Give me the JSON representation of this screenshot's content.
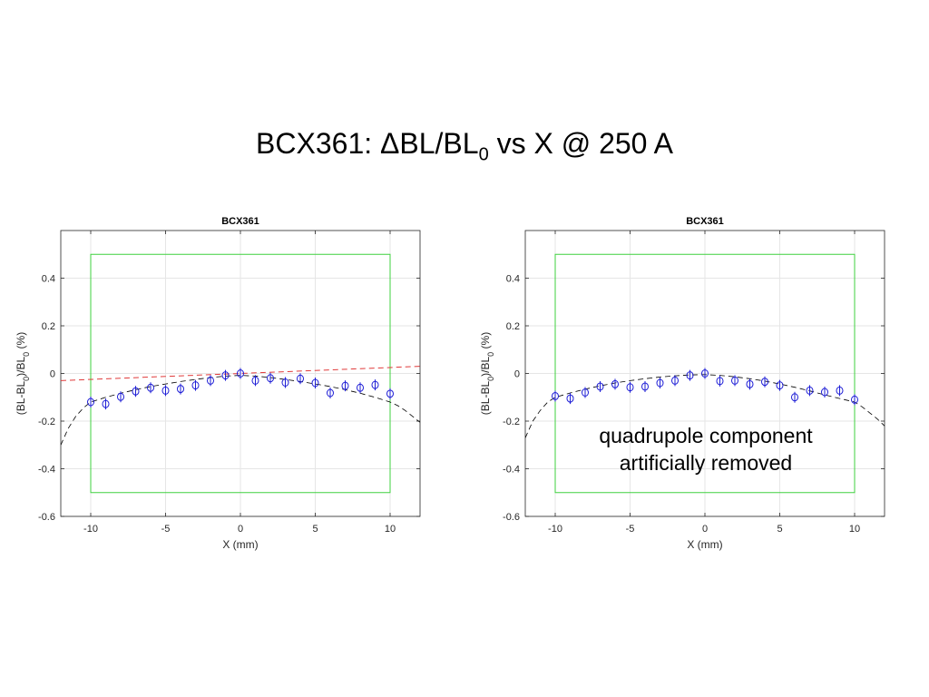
{
  "slide": {
    "title_prefix": "BCX361: ΔBL/BL",
    "title_sub": "0",
    "title_suffix": " vs X @ 250 A"
  },
  "chart_data": [
    {
      "type": "scatter",
      "title": "BCX361",
      "xlabel": "X (mm)",
      "ylabel_parts": [
        "(BL-BL",
        "0",
        ")/BL",
        "0",
        " (%)"
      ],
      "xlim": [
        -12,
        12
      ],
      "ylim": [
        -0.6,
        0.6
      ],
      "xticks": [
        "-10",
        "-5",
        "0",
        "5",
        "10"
      ],
      "yticks": [
        "-0.6",
        "-0.4",
        "-0.2",
        "0",
        "0.2",
        "0.4"
      ],
      "grid": true,
      "annotation": [],
      "markers": {
        "x": [
          -10,
          -9,
          -8,
          -7,
          -6,
          -5,
          -4,
          -3,
          -2,
          -1,
          0,
          1,
          2,
          3,
          4,
          5,
          6,
          7,
          8,
          9,
          10
        ],
        "y": [
          -0.12,
          -0.128,
          -0.098,
          -0.075,
          -0.06,
          -0.072,
          -0.065,
          -0.05,
          -0.03,
          -0.008,
          0.0,
          -0.03,
          -0.02,
          -0.038,
          -0.022,
          -0.04,
          -0.082,
          -0.052,
          -0.06,
          -0.048,
          -0.085
        ],
        "color": "#1f1fd6"
      },
      "fit_curve": {
        "x": [
          -12,
          -11.5,
          -11,
          -10.5,
          -10,
          -9,
          -8,
          -7,
          -6,
          -5,
          -4,
          -3,
          -2,
          -1,
          0,
          1,
          2,
          3,
          4,
          5,
          6,
          7,
          8,
          9,
          10,
          10.5,
          11,
          11.5,
          12
        ],
        "y": [
          -0.3,
          -0.23,
          -0.18,
          -0.145,
          -0.12,
          -0.1,
          -0.083,
          -0.068,
          -0.055,
          -0.044,
          -0.034,
          -0.025,
          -0.017,
          -0.011,
          -0.008,
          -0.011,
          -0.017,
          -0.025,
          -0.034,
          -0.044,
          -0.055,
          -0.068,
          -0.083,
          -0.1,
          -0.12,
          -0.135,
          -0.155,
          -0.18,
          -0.205
        ],
        "color": "#000000",
        "style": "dashed"
      },
      "linear_trend": {
        "x": [
          -12,
          12
        ],
        "y": [
          -0.03,
          0.03
        ],
        "color": "#e03a3a",
        "style": "dashed"
      },
      "tolerance_box": {
        "x": [
          -10,
          10
        ],
        "y": [
          -0.5,
          0.5
        ],
        "color": "#3fd03f"
      }
    },
    {
      "type": "scatter",
      "title": "BCX361",
      "xlabel": "X (mm)",
      "ylabel_parts": [
        "(BL-BL",
        "0",
        ")/BL",
        "0",
        " (%)"
      ],
      "xlim": [
        -12,
        12
      ],
      "ylim": [
        -0.6,
        0.6
      ],
      "xticks": [
        "-10",
        "-5",
        "0",
        "5",
        "10"
      ],
      "yticks": [
        "-0.6",
        "-0.4",
        "-0.2",
        "0",
        "0.2",
        "0.4"
      ],
      "grid": true,
      "annotation": [
        "quadrupole component",
        "artificially removed"
      ],
      "markers": {
        "x": [
          -10,
          -9,
          -8,
          -7,
          -6,
          -5,
          -4,
          -3,
          -2,
          -1,
          0,
          1,
          2,
          3,
          4,
          5,
          6,
          7,
          8,
          9,
          10
        ],
        "y": [
          -0.095,
          -0.105,
          -0.08,
          -0.055,
          -0.045,
          -0.058,
          -0.055,
          -0.04,
          -0.03,
          -0.008,
          0.0,
          -0.032,
          -0.03,
          -0.045,
          -0.035,
          -0.05,
          -0.1,
          -0.072,
          -0.078,
          -0.072,
          -0.11
        ],
        "color": "#1f1fd6"
      },
      "fit_curve": {
        "x": [
          -12,
          -11.5,
          -11,
          -10.5,
          -10,
          -9,
          -8,
          -7,
          -6,
          -5,
          -4,
          -3,
          -2,
          -1,
          0,
          1,
          2,
          3,
          4,
          5,
          6,
          7,
          8,
          9,
          10,
          10.5,
          11,
          11.5,
          12
        ],
        "y": [
          -0.27,
          -0.2,
          -0.155,
          -0.12,
          -0.1,
          -0.082,
          -0.066,
          -0.052,
          -0.04,
          -0.03,
          -0.022,
          -0.015,
          -0.01,
          -0.006,
          -0.005,
          -0.008,
          -0.014,
          -0.022,
          -0.032,
          -0.044,
          -0.058,
          -0.073,
          -0.09,
          -0.105,
          -0.12,
          -0.14,
          -0.165,
          -0.19,
          -0.22
        ],
        "color": "#000000",
        "style": "dashed"
      },
      "tolerance_box": {
        "x": [
          -10,
          10
        ],
        "y": [
          -0.5,
          0.5
        ],
        "color": "#3fd03f"
      }
    }
  ]
}
